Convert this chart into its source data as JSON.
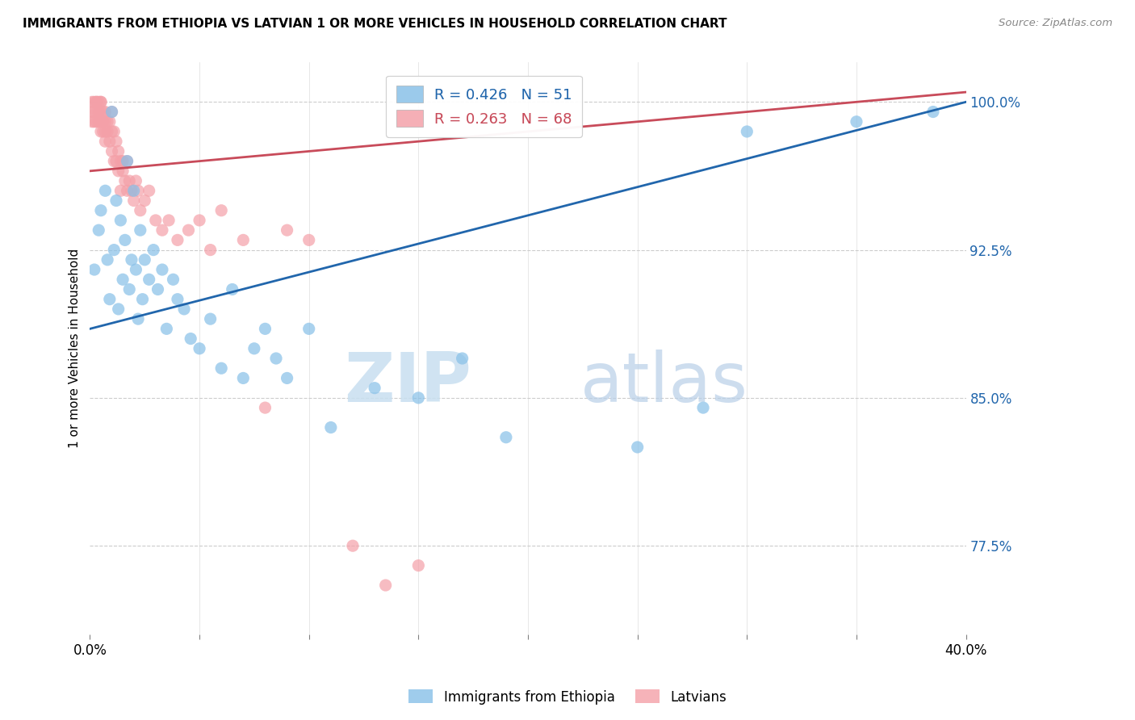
{
  "title": "IMMIGRANTS FROM ETHIOPIA VS LATVIAN 1 OR MORE VEHICLES IN HOUSEHOLD CORRELATION CHART",
  "source_text": "Source: ZipAtlas.com",
  "ylabel": "1 or more Vehicles in Household",
  "xlim": [
    0.0,
    40.0
  ],
  "ylim": [
    73.0,
    102.0
  ],
  "yticks": [
    77.5,
    85.0,
    92.5,
    100.0
  ],
  "xticks": [
    0.0,
    5.0,
    10.0,
    15.0,
    20.0,
    25.0,
    30.0,
    35.0,
    40.0
  ],
  "blue_color": "#87c0e8",
  "pink_color": "#f4a0a8",
  "blue_line_color": "#2166ac",
  "pink_line_color": "#c84b5a",
  "legend_blue_R_text": "R = 0.426   N = 51",
  "legend_pink_R_text": "R = 0.263   N = 68",
  "watermark_zip": "ZIP",
  "watermark_atlas": "atlas",
  "blue_scatter_x": [
    0.2,
    0.4,
    0.5,
    0.7,
    0.8,
    0.9,
    1.0,
    1.1,
    1.2,
    1.3,
    1.4,
    1.5,
    1.6,
    1.7,
    1.8,
    1.9,
    2.0,
    2.1,
    2.2,
    2.3,
    2.4,
    2.5,
    2.7,
    2.9,
    3.1,
    3.3,
    3.5,
    3.8,
    4.0,
    4.3,
    4.6,
    5.0,
    5.5,
    6.0,
    6.5,
    7.0,
    7.5,
    8.0,
    8.5,
    9.0,
    10.0,
    11.0,
    13.0,
    15.0,
    17.0,
    19.0,
    25.0,
    28.0,
    30.0,
    35.0,
    38.5
  ],
  "blue_scatter_y": [
    91.5,
    93.5,
    94.5,
    95.5,
    92.0,
    90.0,
    99.5,
    92.5,
    95.0,
    89.5,
    94.0,
    91.0,
    93.0,
    97.0,
    90.5,
    92.0,
    95.5,
    91.5,
    89.0,
    93.5,
    90.0,
    92.0,
    91.0,
    92.5,
    90.5,
    91.5,
    88.5,
    91.0,
    90.0,
    89.5,
    88.0,
    87.5,
    89.0,
    86.5,
    90.5,
    86.0,
    87.5,
    88.5,
    87.0,
    86.0,
    88.5,
    83.5,
    85.5,
    85.0,
    87.0,
    83.0,
    82.5,
    84.5,
    98.5,
    99.0,
    99.5
  ],
  "pink_scatter_x": [
    0.1,
    0.1,
    0.1,
    0.2,
    0.2,
    0.2,
    0.3,
    0.3,
    0.3,
    0.3,
    0.4,
    0.4,
    0.4,
    0.5,
    0.5,
    0.5,
    0.5,
    0.5,
    0.6,
    0.6,
    0.6,
    0.7,
    0.7,
    0.7,
    0.7,
    0.8,
    0.8,
    0.9,
    0.9,
    1.0,
    1.0,
    1.0,
    1.1,
    1.1,
    1.2,
    1.2,
    1.3,
    1.3,
    1.4,
    1.4,
    1.5,
    1.5,
    1.6,
    1.7,
    1.7,
    1.8,
    1.9,
    2.0,
    2.1,
    2.2,
    2.3,
    2.5,
    2.7,
    3.0,
    3.3,
    3.6,
    4.0,
    4.5,
    5.0,
    5.5,
    6.0,
    7.0,
    8.0,
    9.0,
    10.0,
    12.0,
    13.5,
    15.0
  ],
  "pink_scatter_y": [
    100.0,
    99.5,
    99.0,
    100.0,
    99.5,
    99.0,
    100.0,
    100.0,
    99.5,
    99.0,
    100.0,
    99.5,
    99.0,
    100.0,
    100.0,
    99.5,
    99.0,
    98.5,
    99.5,
    99.0,
    98.5,
    99.5,
    99.0,
    98.5,
    98.0,
    99.0,
    98.5,
    99.0,
    98.0,
    99.5,
    98.5,
    97.5,
    98.5,
    97.0,
    98.0,
    97.0,
    97.5,
    96.5,
    97.0,
    95.5,
    97.0,
    96.5,
    96.0,
    97.0,
    95.5,
    96.0,
    95.5,
    95.0,
    96.0,
    95.5,
    94.5,
    95.0,
    95.5,
    94.0,
    93.5,
    94.0,
    93.0,
    93.5,
    94.0,
    92.5,
    94.5,
    93.0,
    84.5,
    93.5,
    93.0,
    77.5,
    75.5,
    76.5
  ],
  "blue_trend_x": [
    0.0,
    40.0
  ],
  "blue_trend_y": [
    88.5,
    100.0
  ],
  "pink_trend_x": [
    0.0,
    40.0
  ],
  "pink_trend_y": [
    96.5,
    100.5
  ]
}
